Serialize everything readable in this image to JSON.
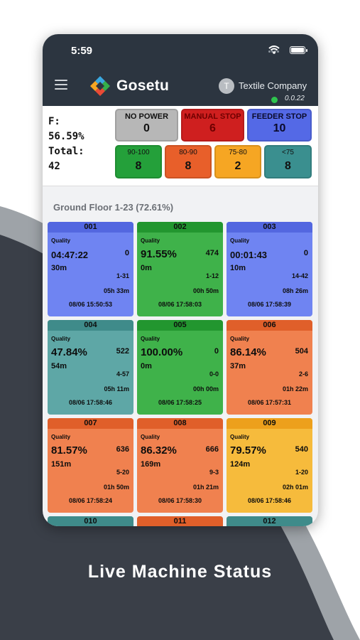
{
  "status_bar": {
    "time": "5:59"
  },
  "app_bar": {
    "brand": "Gosetu",
    "avatar_initial": "T",
    "company": "Textile Company",
    "version": "0.0.22"
  },
  "summary": {
    "f_label": "F:",
    "f_value": "56.59%",
    "total_label": "Total:",
    "total_value": "42",
    "status_tiles": [
      {
        "label": "NO POWER",
        "value": "0",
        "color": "#b7b7b7",
        "text_color": "#111111"
      },
      {
        "label": "MANUAL STOP",
        "value": "6",
        "color": "#cf1f1f",
        "text_color": "#6e0000"
      },
      {
        "label": "FEEDER STOP",
        "value": "10",
        "color": "#5469e6",
        "text_color": "#0a0a2a"
      }
    ],
    "range_tiles": [
      {
        "label": "90-100",
        "value": "8",
        "color": "#24a03a"
      },
      {
        "label": "80-90",
        "value": "8",
        "color": "#e85f2a"
      },
      {
        "label": "75-80",
        "value": "2",
        "color": "#f6a623"
      },
      {
        "label": "<75",
        "value": "8",
        "color": "#3a8f8f"
      }
    ]
  },
  "floor": {
    "title": "Ground Floor 1-23 (72.61%)",
    "machines": [
      {
        "id": "001",
        "quality": "Quality",
        "main": "04:47:22",
        "count": "0",
        "length": "30m",
        "range": "1-31",
        "duration": "05h 33m",
        "timestamp": "08/06 15:50:53",
        "color": "#6f84f2",
        "header": "#5367e0"
      },
      {
        "id": "002",
        "quality": "Quality",
        "main": "91.55%",
        "count": "474",
        "length": "0m",
        "range": "1-12",
        "duration": "00h 50m",
        "timestamp": "08/06 17:58:03",
        "color": "#3fb24a",
        "header": "#22962f"
      },
      {
        "id": "003",
        "quality": "Quality",
        "main": "00:01:43",
        "count": "0",
        "length": "10m",
        "range": "14-42",
        "duration": "08h 26m",
        "timestamp": "08/06 17:58:39",
        "color": "#6f84f2",
        "header": "#5367e0"
      },
      {
        "id": "004",
        "quality": "Quality",
        "main": "47.84%",
        "count": "522",
        "length": "54m",
        "range": "4-57",
        "duration": "05h 11m",
        "timestamp": "08/06 17:58:46",
        "color": "#5ea7a6",
        "header": "#3f8b8a"
      },
      {
        "id": "005",
        "quality": "Quality",
        "main": "100.00%",
        "count": "0",
        "length": "0m",
        "range": "0-0",
        "duration": "00h 00m",
        "timestamp": "08/06 17:58:25",
        "color": "#3fb24a",
        "header": "#22962f"
      },
      {
        "id": "006",
        "quality": "Quality",
        "main": "86.14%",
        "count": "504",
        "length": "37m",
        "range": "2-6",
        "duration": "01h 22m",
        "timestamp": "08/06 17:57:31",
        "color": "#f0814f",
        "header": "#e05f2a"
      },
      {
        "id": "007",
        "quality": "Quality",
        "main": "81.57%",
        "count": "636",
        "length": "151m",
        "range": "5-20",
        "duration": "01h 50m",
        "timestamp": "08/06 17:58:24",
        "color": "#f0814f",
        "header": "#e05f2a"
      },
      {
        "id": "008",
        "quality": "Quality",
        "main": "86.32%",
        "count": "666",
        "length": "169m",
        "range": "9-3",
        "duration": "01h 21m",
        "timestamp": "08/06 17:58:30",
        "color": "#f0814f",
        "header": "#e05f2a"
      },
      {
        "id": "009",
        "quality": "Quality",
        "main": "79.57%",
        "count": "540",
        "length": "124m",
        "range": "1-20",
        "duration": "02h 01m",
        "timestamp": "08/06 17:58:46",
        "color": "#f6bb3c",
        "header": "#eda01c"
      },
      {
        "id": "010",
        "color": "#5ea7a6",
        "header": "#3f8b8a"
      },
      {
        "id": "011",
        "color": "#f0814f",
        "header": "#e05f2a"
      },
      {
        "id": "012",
        "color": "#5ea7a6",
        "header": "#3f8b8a"
      }
    ]
  },
  "caption": "Live Machine Status"
}
